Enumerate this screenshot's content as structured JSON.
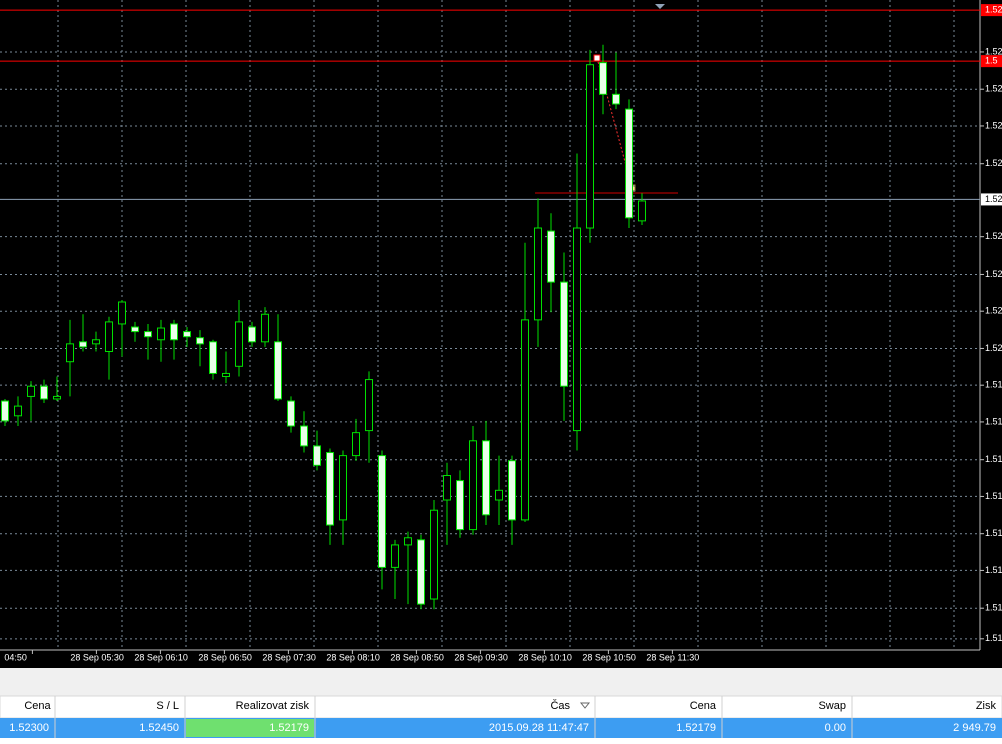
{
  "chart_data": {
    "type": "candlestick",
    "ylim": [
      1.513,
      1.5256
    ],
    "yticks": [
      {
        "value": 1.52468,
        "label": "1.52"
      },
      {
        "value": 1.52395,
        "label": "1.52"
      },
      {
        "value": 1.52323,
        "label": "1.52"
      },
      {
        "value": 1.52249,
        "label": "1.52"
      },
      {
        "value": 1.52106,
        "label": "1.52"
      },
      {
        "value": 1.52032,
        "label": "1.52"
      },
      {
        "value": 1.5196,
        "label": "1.52"
      },
      {
        "value": 1.51887,
        "label": "1.52"
      },
      {
        "value": 1.51815,
        "label": "1.51"
      },
      {
        "value": 1.51743,
        "label": "1.51"
      },
      {
        "value": 1.51669,
        "label": "1.51"
      },
      {
        "value": 1.51597,
        "label": "1.51"
      },
      {
        "value": 1.51524,
        "label": "1.51"
      },
      {
        "value": 1.51452,
        "label": "1.51"
      },
      {
        "value": 1.51378,
        "label": "1.51"
      },
      {
        "value": 1.51318,
        "label": "1.51"
      }
    ],
    "grid": true,
    "x_labels": [
      "04:50",
      "28 Sep 05:30",
      "28 Sep 06:10",
      "28 Sep 06:50",
      "28 Sep 07:30",
      "28 Sep 08:10",
      "28 Sep 08:50",
      "28 Sep 09:30",
      "28 Sep 10:10",
      "28 Sep 10:50",
      "28 Sep 11:30"
    ],
    "price_lines": [
      {
        "value": 1.5255,
        "label": "1.52",
        "color": "#ff0000"
      },
      {
        "value": 1.5245,
        "label": "1.5",
        "color": "#ff0000"
      },
      {
        "value": 1.52179,
        "label": "1.52",
        "color": "#8fa3b8"
      }
    ],
    "wick_color": "#00e000",
    "bull_color": "#000000",
    "bear_color": "#e8ffe8",
    "open": [
      1.51784,
      1.51755,
      1.51793,
      1.51813,
      1.51788,
      1.51861,
      1.519,
      1.51896,
      1.51881,
      1.51935,
      1.51929,
      1.5192,
      1.51904,
      1.51935,
      1.5192,
      1.51908,
      1.519,
      1.51832,
      1.51852,
      1.51929,
      1.519,
      1.519,
      1.51784,
      1.51735,
      1.51696,
      1.51683,
      1.51551,
      1.51677,
      1.51726,
      1.51677,
      1.51458,
      1.51502,
      1.51512,
      1.51396,
      1.5159,
      1.51628,
      1.51532,
      1.51706,
      1.5159,
      1.51667,
      1.51551,
      1.51943,
      1.52117,
      1.52017,
      1.51726,
      1.52123,
      1.52447,
      1.52385,
      1.52356,
      1.52137
    ],
    "high": [
      1.51788,
      1.51793,
      1.51823,
      1.51826,
      1.51832,
      1.51943,
      1.51954,
      1.5192,
      1.51949,
      1.51982,
      1.51939,
      1.51935,
      1.51943,
      1.51943,
      1.51929,
      1.51923,
      1.51904,
      1.51881,
      1.51982,
      1.51939,
      1.51968,
      1.51954,
      1.51793,
      1.51764,
      1.51726,
      1.51691,
      1.51687,
      1.51749,
      1.51842,
      1.51687,
      1.51512,
      1.51528,
      1.51522,
      1.5159,
      1.51663,
      1.51648,
      1.51735,
      1.51745,
      1.51677,
      1.51677,
      1.52094,
      1.52181,
      1.52152,
      1.52075,
      1.52269,
      1.52472,
      1.52482,
      1.52467,
      1.52375,
      1.52191
    ],
    "low": [
      1.51735,
      1.51735,
      1.51745,
      1.5178,
      1.51784,
      1.51793,
      1.51881,
      1.51881,
      1.51826,
      1.51871,
      1.519,
      1.51865,
      1.51861,
      1.51865,
      1.5189,
      1.51852,
      1.51826,
      1.51819,
      1.51832,
      1.5189,
      1.5189,
      1.51784,
      1.51722,
      1.51683,
      1.51648,
      1.51502,
      1.51502,
      1.51667,
      1.51663,
      1.51415,
      1.51396,
      1.51386,
      1.51376,
      1.51376,
      1.51502,
      1.51516,
      1.51522,
      1.51541,
      1.51541,
      1.51502,
      1.51547,
      1.5189,
      1.51958,
      1.51745,
      1.51687,
      1.52094,
      1.52346,
      1.52356,
      1.52123,
      1.52129
    ],
    "close": [
      1.51745,
      1.51774,
      1.51813,
      1.51788,
      1.51793,
      1.51896,
      1.5189,
      1.51904,
      1.51939,
      1.51978,
      1.5192,
      1.5191,
      1.51927,
      1.51904,
      1.5191,
      1.51896,
      1.51838,
      1.51838,
      1.51939,
      1.519,
      1.51954,
      1.51788,
      1.51735,
      1.51696,
      1.51658,
      1.51541,
      1.51677,
      1.51722,
      1.51826,
      1.51458,
      1.51502,
      1.51516,
      1.51386,
      1.5157,
      1.51638,
      1.51532,
      1.51706,
      1.51561,
      1.51609,
      1.51551,
      1.51943,
      1.52123,
      1.52017,
      1.51813,
      1.52123,
      1.52443,
      1.52385,
      1.52366,
      1.52143,
      1.52176
    ]
  },
  "table": {
    "headers": [
      "Cena",
      "S / L",
      "Realizovat zisk",
      "Čas",
      "Cena",
      "Swap",
      "Zisk"
    ],
    "rows": [
      [
        "1.52300",
        "1.52450",
        "1.52179",
        "2015.09.28 11:47:47",
        "1.52179",
        "0.00",
        "2 949.79"
      ]
    ]
  }
}
